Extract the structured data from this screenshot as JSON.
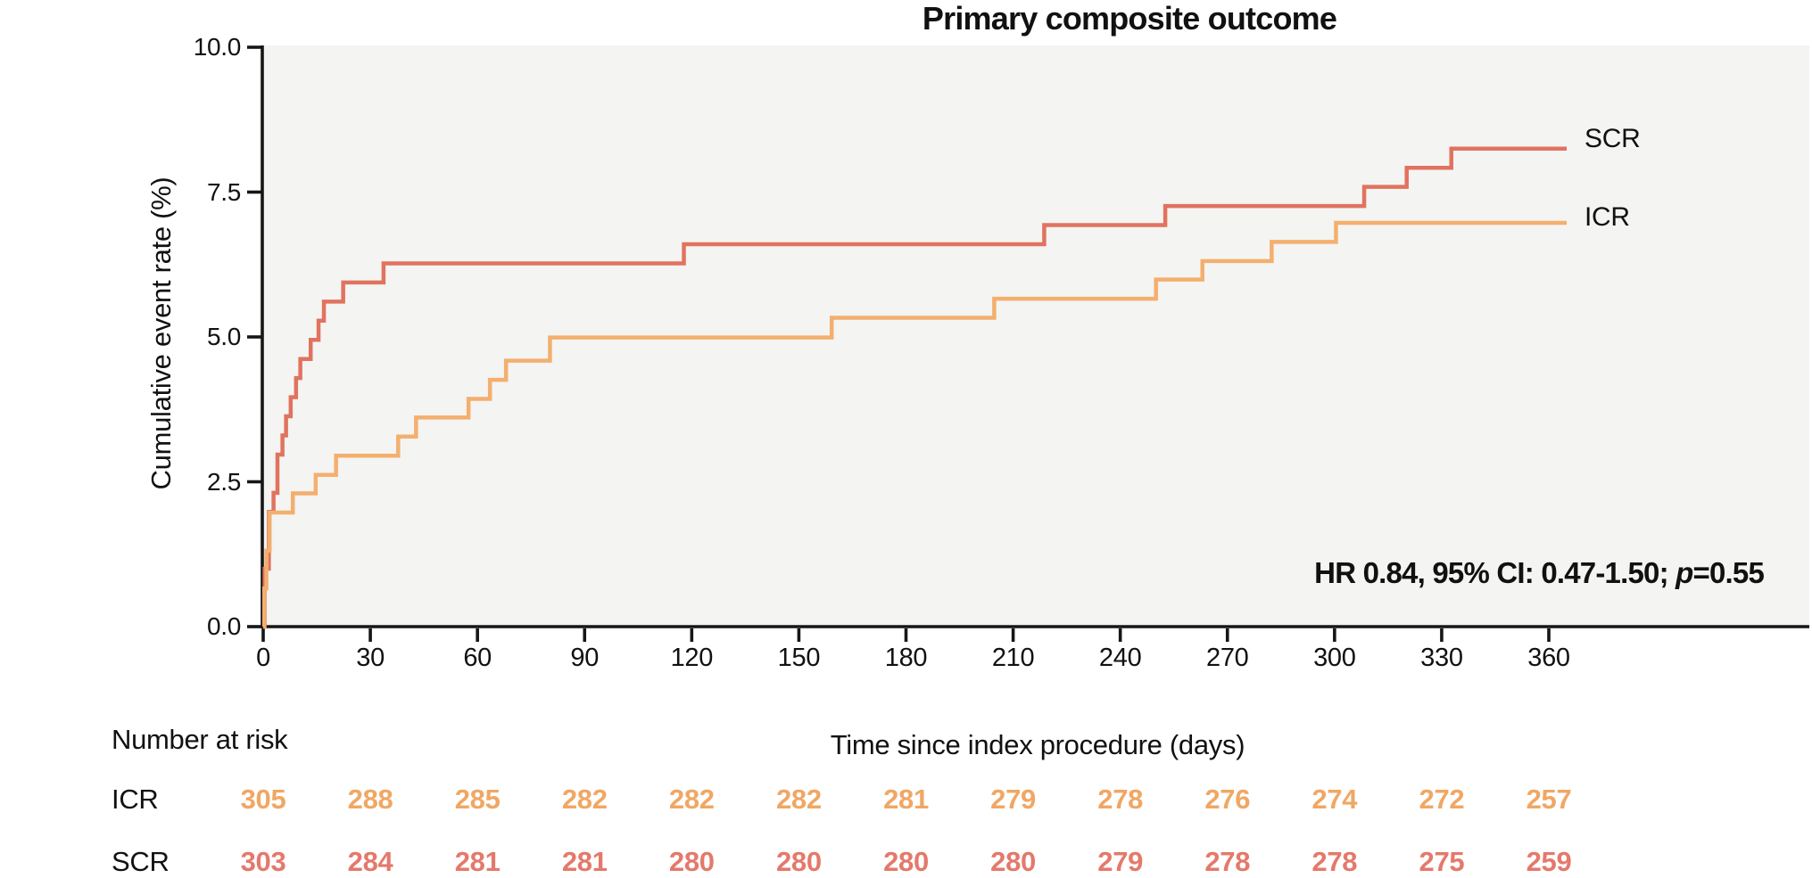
{
  "title": "Primary composite outcome",
  "y_axis": {
    "label": "Cumulative event rate (%)",
    "ticks": [
      {
        "value": 0,
        "label": "0.0"
      },
      {
        "value": 2.5,
        "label": "2.5"
      },
      {
        "value": 5,
        "label": "5.0"
      },
      {
        "value": 7.5,
        "label": "7.5"
      },
      {
        "value": 10,
        "label": "10.0"
      }
    ]
  },
  "x_axis": {
    "label": "Time since index procedure (days)",
    "ticks": [
      {
        "value": 0,
        "label": "0"
      },
      {
        "value": 30,
        "label": "30"
      },
      {
        "value": 60,
        "label": "60"
      },
      {
        "value": 90,
        "label": "90"
      },
      {
        "value": 120,
        "label": "120"
      },
      {
        "value": 150,
        "label": "150"
      },
      {
        "value": 180,
        "label": "180"
      },
      {
        "value": 210,
        "label": "210"
      },
      {
        "value": 240,
        "label": "240"
      },
      {
        "value": 270,
        "label": "270"
      },
      {
        "value": 300,
        "label": "300"
      },
      {
        "value": 330,
        "label": "330"
      },
      {
        "value": 360,
        "label": "360"
      }
    ]
  },
  "legend": [
    {
      "id": "scr",
      "label": "SCR",
      "color": "#E0735F"
    },
    {
      "id": "icr",
      "label": "ICR",
      "color": "#F4AF6E"
    }
  ],
  "stats": {
    "prefix": "HR 0.84, 95% CI: 0.47-1.50; ",
    "p": "p",
    "suffix": "=0.55"
  },
  "risk_table": {
    "header": "Number at risk",
    "rows": [
      {
        "label": "ICR",
        "color": "#F0A764",
        "values": [
          305,
          288,
          285,
          282,
          282,
          282,
          281,
          279,
          278,
          276,
          274,
          272,
          257
        ]
      },
      {
        "label": "SCR",
        "color": "#E4796B",
        "values": [
          303,
          284,
          281,
          281,
          280,
          280,
          280,
          280,
          279,
          278,
          278,
          275,
          259
        ]
      }
    ]
  },
  "chart_data": {
    "type": "line",
    "subtype": "kaplan-meier-step",
    "title": "Primary composite outcome",
    "xlabel": "Time since index procedure (days)",
    "ylabel": "Cumulative event rate (%)",
    "xlim": [
      0,
      390
    ],
    "ylim": [
      0,
      10
    ],
    "xticks": [
      0,
      30,
      60,
      90,
      120,
      150,
      180,
      210,
      240,
      270,
      300,
      330,
      360
    ],
    "yticks": [
      0,
      2.5,
      5,
      7.5,
      10
    ],
    "grid": false,
    "legend_position": "right-of-curve-end",
    "annotation": "HR 0.84, 95% CI: 0.47-1.50; p=0.55",
    "series": [
      {
        "name": "SCR",
        "color": "#E0735F",
        "steps": [
          [
            0,
            0
          ],
          [
            0.4,
            1.0
          ],
          [
            1.6,
            1.98
          ],
          [
            2.9,
            2.31
          ],
          [
            4.0,
            2.97
          ],
          [
            5.4,
            3.3
          ],
          [
            6.4,
            3.63
          ],
          [
            7.7,
            3.96
          ],
          [
            9.2,
            4.29
          ],
          [
            10.4,
            4.62
          ],
          [
            13.3,
            4.95
          ],
          [
            15.5,
            5.28
          ],
          [
            17.0,
            5.61
          ],
          [
            22.4,
            5.94
          ],
          [
            33.7,
            6.27
          ],
          [
            117.8,
            6.6
          ],
          [
            218.7,
            6.93
          ],
          [
            252.6,
            7.26
          ],
          [
            308.3,
            7.59
          ],
          [
            320.2,
            7.92
          ],
          [
            332.7,
            8.25
          ],
          [
            365,
            8.25
          ]
        ]
      },
      {
        "name": "ICR",
        "color": "#F4AF6E",
        "steps": [
          [
            0,
            0
          ],
          [
            0.3,
            0.66
          ],
          [
            0.9,
            1.31
          ],
          [
            1.8,
            1.97
          ],
          [
            8.3,
            2.3
          ],
          [
            14.7,
            2.62
          ],
          [
            20.4,
            2.95
          ],
          [
            37.8,
            3.28
          ],
          [
            42.8,
            3.61
          ],
          [
            57.5,
            3.93
          ],
          [
            63.5,
            4.26
          ],
          [
            68.0,
            4.59
          ],
          [
            80.3,
            4.99
          ],
          [
            159.2,
            5.33
          ],
          [
            204.7,
            5.66
          ],
          [
            250.0,
            5.99
          ],
          [
            263.0,
            6.31
          ],
          [
            282.4,
            6.64
          ],
          [
            300.4,
            6.97
          ],
          [
            365,
            6.97
          ]
        ]
      }
    ]
  }
}
